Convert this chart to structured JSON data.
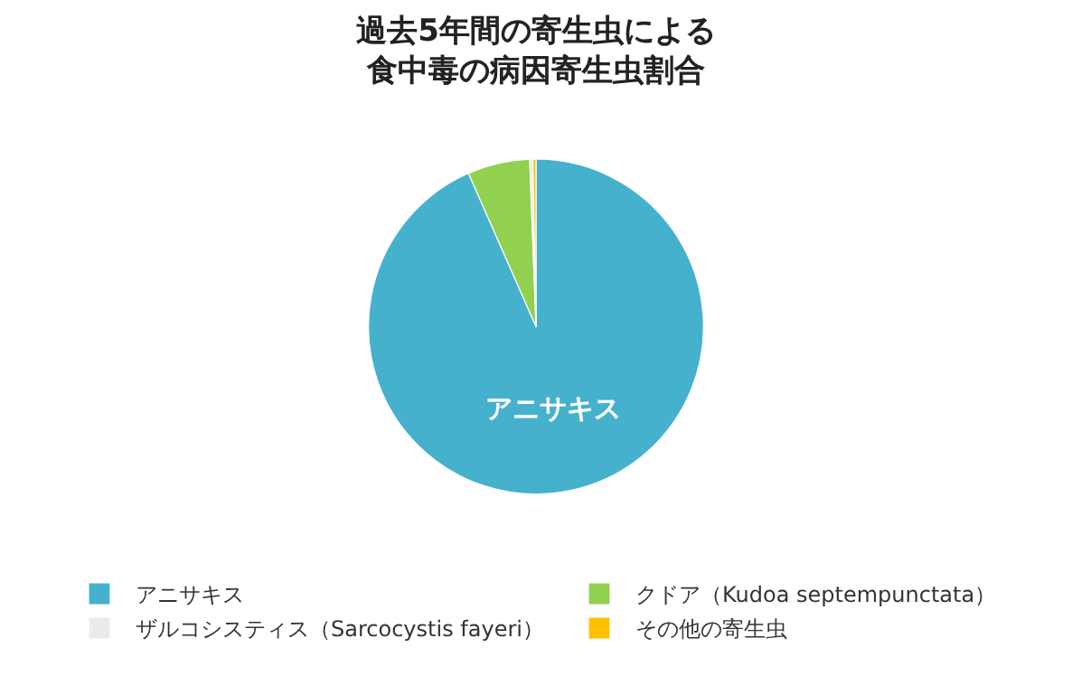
{
  "chart_data": {
    "type": "pie",
    "title": "過去5年間の寄生虫による",
    "subtitle": "食中毒の病因寄生虫割合",
    "categories": [
      "アニサキス",
      "クドア（Kudoa septempunctata）",
      "ザルコシスティス（Sarcocystis fayeri）",
      "その他の寄生虫"
    ],
    "values": [
      93.4,
      6.0,
      0.3,
      0.3
    ],
    "colors": [
      "#45b1cd",
      "#92d050",
      "#ebebeb",
      "#ffc000"
    ],
    "value_labels": [
      "アニサキス",
      null,
      null,
      null
    ],
    "legend": "bottom"
  }
}
